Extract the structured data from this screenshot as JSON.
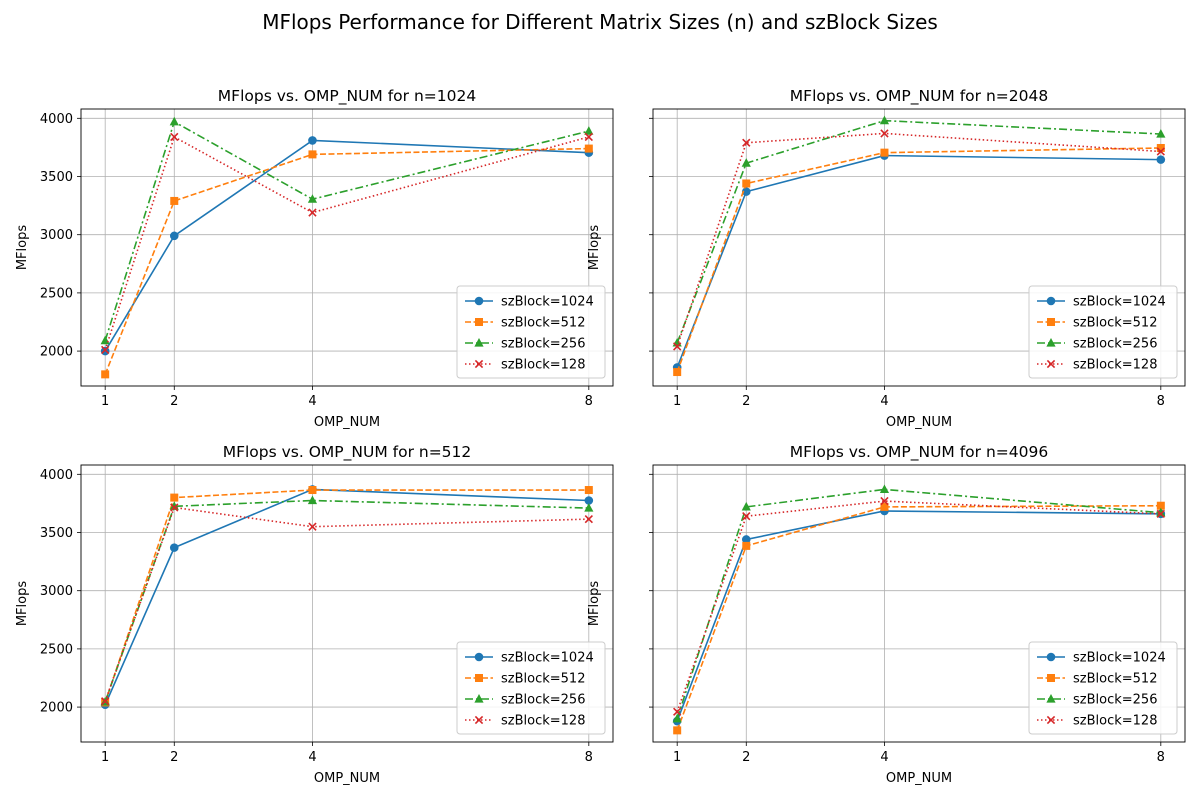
{
  "figure_title": "MFlops Performance for Different Matrix Sizes (n) and szBlock Sizes",
  "series_styles": [
    {
      "name": "szBlock=1024",
      "color": "#1f77b4",
      "dash": "",
      "marker": "circle"
    },
    {
      "name": "szBlock=512",
      "color": "#ff7f0e",
      "dash": "6,2.5",
      "marker": "square"
    },
    {
      "name": "szBlock=256",
      "color": "#2ca02c",
      "dash": "8,3,2,3",
      "marker": "triangle"
    },
    {
      "name": "szBlock=128",
      "color": "#d62728",
      "dash": "1.5,2.5",
      "marker": "x"
    }
  ],
  "chart_data": [
    {
      "type": "line",
      "title": "MFlops vs. OMP_NUM for n=1024",
      "xlabel": "OMP_NUM",
      "ylabel": "MFlops",
      "x": [
        1,
        2,
        4,
        8
      ],
      "xlim": [
        0.65,
        8.35
      ],
      "ylim": [
        1700,
        4080
      ],
      "yticks": [
        2000,
        2500,
        3000,
        3500,
        4000
      ],
      "show_ytick_labels": true,
      "grid": true,
      "legend_position": "lower right",
      "series": [
        {
          "name": "szBlock=1024",
          "values": [
            2000,
            2990,
            3810,
            3705
          ]
        },
        {
          "name": "szBlock=512",
          "values": [
            1800,
            3290,
            3690,
            3740
          ]
        },
        {
          "name": "szBlock=256",
          "values": [
            2090,
            3970,
            3305,
            3890
          ]
        },
        {
          "name": "szBlock=128",
          "values": [
            2010,
            3840,
            3190,
            3840
          ]
        }
      ]
    },
    {
      "type": "line",
      "title": "MFlops vs. OMP_NUM for n=2048",
      "xlabel": "OMP_NUM",
      "ylabel": "MFlops",
      "x": [
        1,
        2,
        4,
        8
      ],
      "xlim": [
        0.65,
        8.35
      ],
      "ylim": [
        1700,
        4080
      ],
      "yticks": [
        2000,
        2500,
        3000,
        3500,
        4000
      ],
      "show_ytick_labels": false,
      "grid": true,
      "legend_position": "lower right",
      "series": [
        {
          "name": "szBlock=1024",
          "values": [
            1860,
            3370,
            3680,
            3645
          ]
        },
        {
          "name": "szBlock=512",
          "values": [
            1820,
            3440,
            3705,
            3745
          ]
        },
        {
          "name": "szBlock=256",
          "values": [
            2070,
            3615,
            3980,
            3865
          ]
        },
        {
          "name": "szBlock=128",
          "values": [
            2040,
            3790,
            3870,
            3715
          ]
        }
      ]
    },
    {
      "type": "line",
      "title": "MFlops vs. OMP_NUM for n=512",
      "xlabel": "OMP_NUM",
      "ylabel": "MFlops",
      "x": [
        1,
        2,
        4,
        8
      ],
      "xlim": [
        0.65,
        8.35
      ],
      "ylim": [
        1700,
        4080
      ],
      "yticks": [
        2000,
        2500,
        3000,
        3500,
        4000
      ],
      "show_ytick_labels": true,
      "grid": true,
      "legend_position": "lower right",
      "series": [
        {
          "name": "szBlock=1024",
          "values": [
            2020,
            3370,
            3870,
            3775
          ]
        },
        {
          "name": "szBlock=512",
          "values": [
            2040,
            3800,
            3865,
            3865
          ]
        },
        {
          "name": "szBlock=256",
          "values": [
            2045,
            3725,
            3775,
            3710
          ]
        },
        {
          "name": "szBlock=128",
          "values": [
            2050,
            3715,
            3550,
            3615
          ]
        }
      ]
    },
    {
      "type": "line",
      "title": "MFlops vs. OMP_NUM for n=4096",
      "xlabel": "OMP_NUM",
      "ylabel": "MFlops",
      "x": [
        1,
        2,
        4,
        8
      ],
      "xlim": [
        0.65,
        8.35
      ],
      "ylim": [
        1700,
        4080
      ],
      "yticks": [
        2000,
        2500,
        3000,
        3500,
        4000
      ],
      "show_ytick_labels": false,
      "grid": true,
      "legend_position": "lower right",
      "series": [
        {
          "name": "szBlock=1024",
          "values": [
            1880,
            3440,
            3685,
            3660
          ]
        },
        {
          "name": "szBlock=512",
          "values": [
            1800,
            3385,
            3720,
            3730
          ]
        },
        {
          "name": "szBlock=256",
          "values": [
            1900,
            3720,
            3870,
            3670
          ]
        },
        {
          "name": "szBlock=128",
          "values": [
            1960,
            3640,
            3770,
            3660
          ]
        }
      ]
    }
  ]
}
